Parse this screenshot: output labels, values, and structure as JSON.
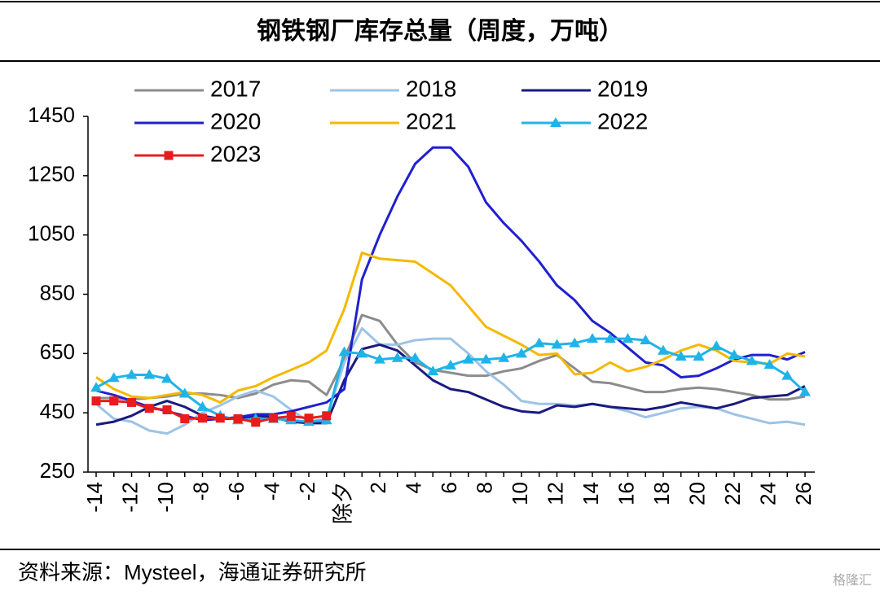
{
  "chart_data": {
    "type": "line",
    "title": "钢铁钢厂库存总量（周度，万吨）",
    "source": "资料来源：Mysteel，海通证券研究所",
    "watermark": "格隆汇",
    "categories": [
      -14,
      null,
      -12,
      null,
      -10,
      null,
      -8,
      null,
      -6,
      null,
      -4,
      null,
      -2,
      null,
      "除夕",
      null,
      2,
      null,
      4,
      null,
      6,
      null,
      8,
      null,
      10,
      null,
      12,
      null,
      14,
      null,
      16,
      null,
      18,
      null,
      20,
      null,
      22,
      null,
      24,
      null,
      26
    ],
    "ylim": [
      250,
      1450
    ],
    "yticks": [
      250,
      450,
      650,
      850,
      1050,
      1250,
      1450
    ],
    "series": [
      {
        "name": "2017",
        "color": "#8c8c8c",
        "values": [
          500,
          500,
          495,
          500,
          505,
          515,
          515,
          510,
          500,
          515,
          545,
          560,
          555,
          510,
          630,
          780,
          760,
          680,
          620,
          595,
          585,
          575,
          575,
          590,
          600,
          625,
          645,
          600,
          555,
          550,
          535,
          520,
          520,
          530,
          535,
          530,
          520,
          510,
          495,
          495,
          505
        ]
      },
      {
        "name": "2018",
        "color": "#9dc3e6",
        "values": [
          480,
          430,
          420,
          390,
          380,
          410,
          450,
          475,
          505,
          525,
          505,
          460,
          420,
          430,
          620,
          735,
          680,
          680,
          695,
          700,
          700,
          650,
          590,
          545,
          490,
          480,
          480,
          475,
          480,
          470,
          455,
          435,
          450,
          465,
          470,
          465,
          445,
          430,
          415,
          420,
          410
        ]
      },
      {
        "name": "2019",
        "color": "#1a1a80",
        "values": [
          410,
          420,
          440,
          470,
          490,
          470,
          440,
          430,
          430,
          440,
          435,
          420,
          415,
          415,
          560,
          665,
          680,
          660,
          610,
          560,
          530,
          520,
          495,
          470,
          455,
          450,
          475,
          470,
          480,
          470,
          465,
          460,
          470,
          485,
          475,
          465,
          480,
          500,
          505,
          510,
          540
        ]
      },
      {
        "name": "2020",
        "color": "#2020d0",
        "values": [
          525,
          510,
          490,
          470,
          455,
          440,
          425,
          430,
          435,
          445,
          445,
          455,
          470,
          485,
          530,
          900,
          1050,
          1180,
          1290,
          1345,
          1345,
          1280,
          1160,
          1090,
          1030,
          960,
          880,
          830,
          760,
          720,
          670,
          620,
          610,
          570,
          575,
          600,
          630,
          645,
          645,
          630,
          655
        ]
      },
      {
        "name": "2021",
        "color": "#f5b800",
        "values": [
          570,
          530,
          505,
          500,
          510,
          520,
          510,
          485,
          525,
          540,
          570,
          595,
          620,
          660,
          800,
          990,
          970,
          965,
          960,
          920,
          880,
          810,
          740,
          710,
          680,
          645,
          650,
          580,
          585,
          620,
          590,
          605,
          630,
          660,
          680,
          660,
          625,
          620,
          615,
          650,
          640
        ]
      },
      {
        "name": "2022",
        "color": "#1fb4e8",
        "marker": "triangle",
        "values": [
          535,
          568,
          578,
          578,
          565,
          515,
          470,
          440,
          425,
          430,
          430,
          425,
          420,
          425,
          655,
          650,
          630,
          635,
          635,
          590,
          610,
          630,
          630,
          635,
          650,
          685,
          680,
          685,
          700,
          700,
          700,
          695,
          660,
          640,
          640,
          675,
          645,
          625,
          612,
          575,
          520
        ]
      },
      {
        "name": "2023",
        "color": "#e81c1c",
        "marker": "square",
        "values": [
          490,
          490,
          485,
          465,
          460,
          430,
          432,
          432,
          430,
          418,
          432,
          438,
          432,
          440,
          null,
          null,
          null,
          null,
          null,
          null,
          null,
          null,
          null,
          null,
          null,
          null,
          null,
          null,
          null,
          null,
          null,
          null,
          null,
          null,
          null,
          null,
          null,
          null,
          null,
          null,
          null
        ]
      }
    ]
  }
}
